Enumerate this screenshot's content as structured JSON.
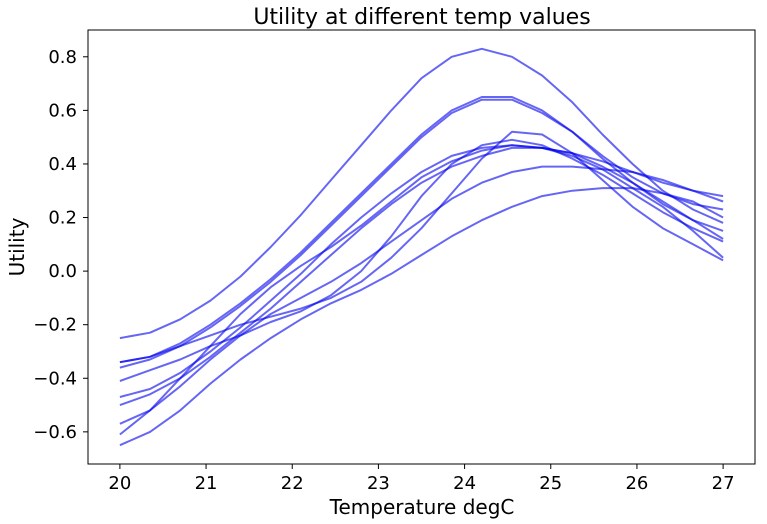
{
  "chart_data": {
    "type": "line",
    "title": "Utility at different temp values",
    "xlabel": "Temperature degC",
    "ylabel": "Utility",
    "xlim": [
      19.63,
      27.37
    ],
    "ylim": [
      -0.72,
      0.9
    ],
    "xticks": [
      "20",
      "21",
      "22",
      "23",
      "24",
      "25",
      "26",
      "27"
    ],
    "yticks": [
      "−0.6",
      "−0.4",
      "−0.2",
      "0.0",
      "0.2",
      "0.4",
      "0.6",
      "0.8"
    ],
    "grid": false,
    "line_color": "#0000ee",
    "x": [
      20,
      20.35,
      20.7,
      21.05,
      21.4,
      21.75,
      22.1,
      22.45,
      22.8,
      23.15,
      23.5,
      23.85,
      24.2,
      24.55,
      24.9,
      25.25,
      25.6,
      25.95,
      26.3,
      26.65,
      27
    ],
    "series": [
      {
        "values": [
          -0.25,
          -0.23,
          -0.18,
          -0.11,
          -0.02,
          0.09,
          0.21,
          0.34,
          0.47,
          0.6,
          0.72,
          0.8,
          0.83,
          0.8,
          0.73,
          0.63,
          0.51,
          0.4,
          0.3,
          0.23,
          0.18
        ]
      },
      {
        "values": [
          -0.34,
          -0.32,
          -0.27,
          -0.2,
          -0.12,
          -0.03,
          0.07,
          0.18,
          0.29,
          0.4,
          0.51,
          0.6,
          0.65,
          0.65,
          0.6,
          0.52,
          0.42,
          0.33,
          0.25,
          0.19,
          0.15
        ]
      },
      {
        "values": [
          -0.36,
          -0.33,
          -0.28,
          -0.21,
          -0.13,
          -0.04,
          0.06,
          0.17,
          0.28,
          0.39,
          0.5,
          0.59,
          0.64,
          0.64,
          0.59,
          0.52,
          0.43,
          0.35,
          0.29,
          0.25,
          0.23
        ]
      },
      {
        "values": [
          -0.34,
          -0.32,
          -0.28,
          -0.24,
          -0.2,
          -0.17,
          -0.14,
          -0.1,
          -0.04,
          0.05,
          0.16,
          0.29,
          0.42,
          0.52,
          0.51,
          0.44,
          0.34,
          0.24,
          0.16,
          0.1,
          0.04
        ]
      },
      {
        "values": [
          -0.41,
          -0.37,
          -0.33,
          -0.28,
          -0.24,
          -0.19,
          -0.15,
          -0.09,
          0.0,
          0.13,
          0.28,
          0.4,
          0.47,
          0.49,
          0.47,
          0.42,
          0.36,
          0.29,
          0.22,
          0.16,
          0.11
        ]
      },
      {
        "values": [
          -0.47,
          -0.44,
          -0.38,
          -0.3,
          -0.21,
          -0.11,
          -0.01,
          0.1,
          0.2,
          0.29,
          0.37,
          0.43,
          0.46,
          0.47,
          0.46,
          0.44,
          0.41,
          0.37,
          0.33,
          0.3,
          0.28
        ]
      },
      {
        "values": [
          -0.5,
          -0.46,
          -0.4,
          -0.32,
          -0.23,
          -0.14,
          -0.04,
          0.06,
          0.16,
          0.25,
          0.33,
          0.39,
          0.43,
          0.46,
          0.46,
          0.44,
          0.39,
          0.33,
          0.26,
          0.19,
          0.12
        ]
      },
      {
        "values": [
          -0.57,
          -0.52,
          -0.43,
          -0.33,
          -0.24,
          -0.16,
          -0.1,
          -0.04,
          0.03,
          0.11,
          0.19,
          0.27,
          0.33,
          0.37,
          0.39,
          0.39,
          0.38,
          0.37,
          0.34,
          0.3,
          0.26
        ]
      },
      {
        "values": [
          -0.61,
          -0.52,
          -0.4,
          -0.28,
          -0.16,
          -0.06,
          0.02,
          0.09,
          0.17,
          0.26,
          0.35,
          0.41,
          0.45,
          0.47,
          0.46,
          0.43,
          0.38,
          0.31,
          0.24,
          0.15,
          0.05
        ]
      },
      {
        "values": [
          -0.65,
          -0.6,
          -0.52,
          -0.42,
          -0.33,
          -0.25,
          -0.18,
          -0.12,
          -0.07,
          -0.01,
          0.06,
          0.13,
          0.19,
          0.24,
          0.28,
          0.3,
          0.31,
          0.31,
          0.29,
          0.26,
          0.2
        ]
      }
    ]
  }
}
